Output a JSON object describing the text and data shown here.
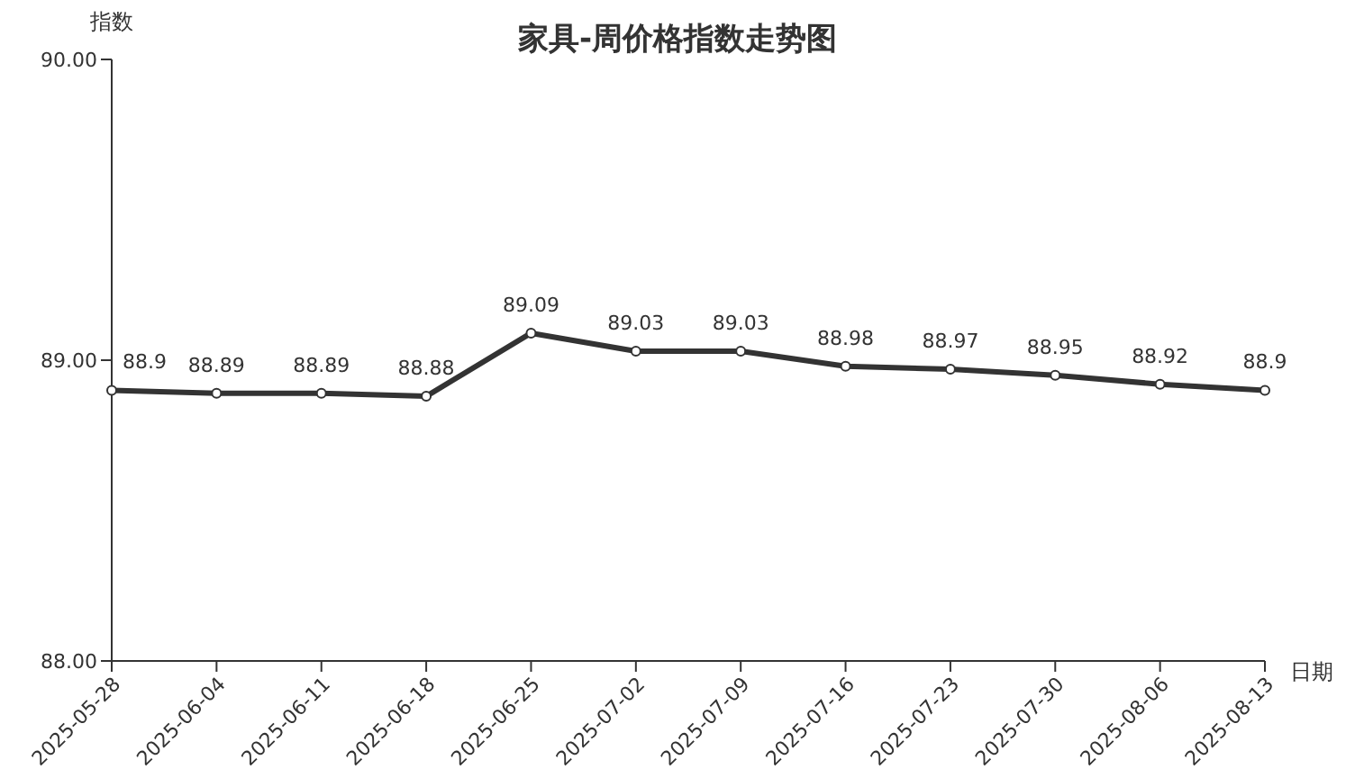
{
  "chart_data": {
    "type": "line",
    "title": "家具-周价格指数走势图",
    "xlabel": "日期",
    "ylabel": "指数",
    "categories": [
      "2025-05-28",
      "2025-06-04",
      "2025-06-11",
      "2025-06-18",
      "2025-06-25",
      "2025-07-02",
      "2025-07-09",
      "2025-07-16",
      "2025-07-23",
      "2025-07-30",
      "2025-08-06",
      "2025-08-13"
    ],
    "series": [
      {
        "color": "#333333",
        "values": [
          88.9,
          88.89,
          88.89,
          88.88,
          89.09,
          89.03,
          89.03,
          88.98,
          88.97,
          88.95,
          88.92,
          88.9
        ]
      }
    ],
    "ylim": [
      88,
      90
    ],
    "yticks": [
      {
        "value": 88,
        "label": "88.00"
      },
      {
        "value": 89,
        "label": "89.00"
      },
      {
        "value": 90,
        "label": "90.00"
      }
    ],
    "grid": false,
    "legend": false,
    "marker": "circle",
    "line_style": "solid",
    "data_labels": true
  }
}
